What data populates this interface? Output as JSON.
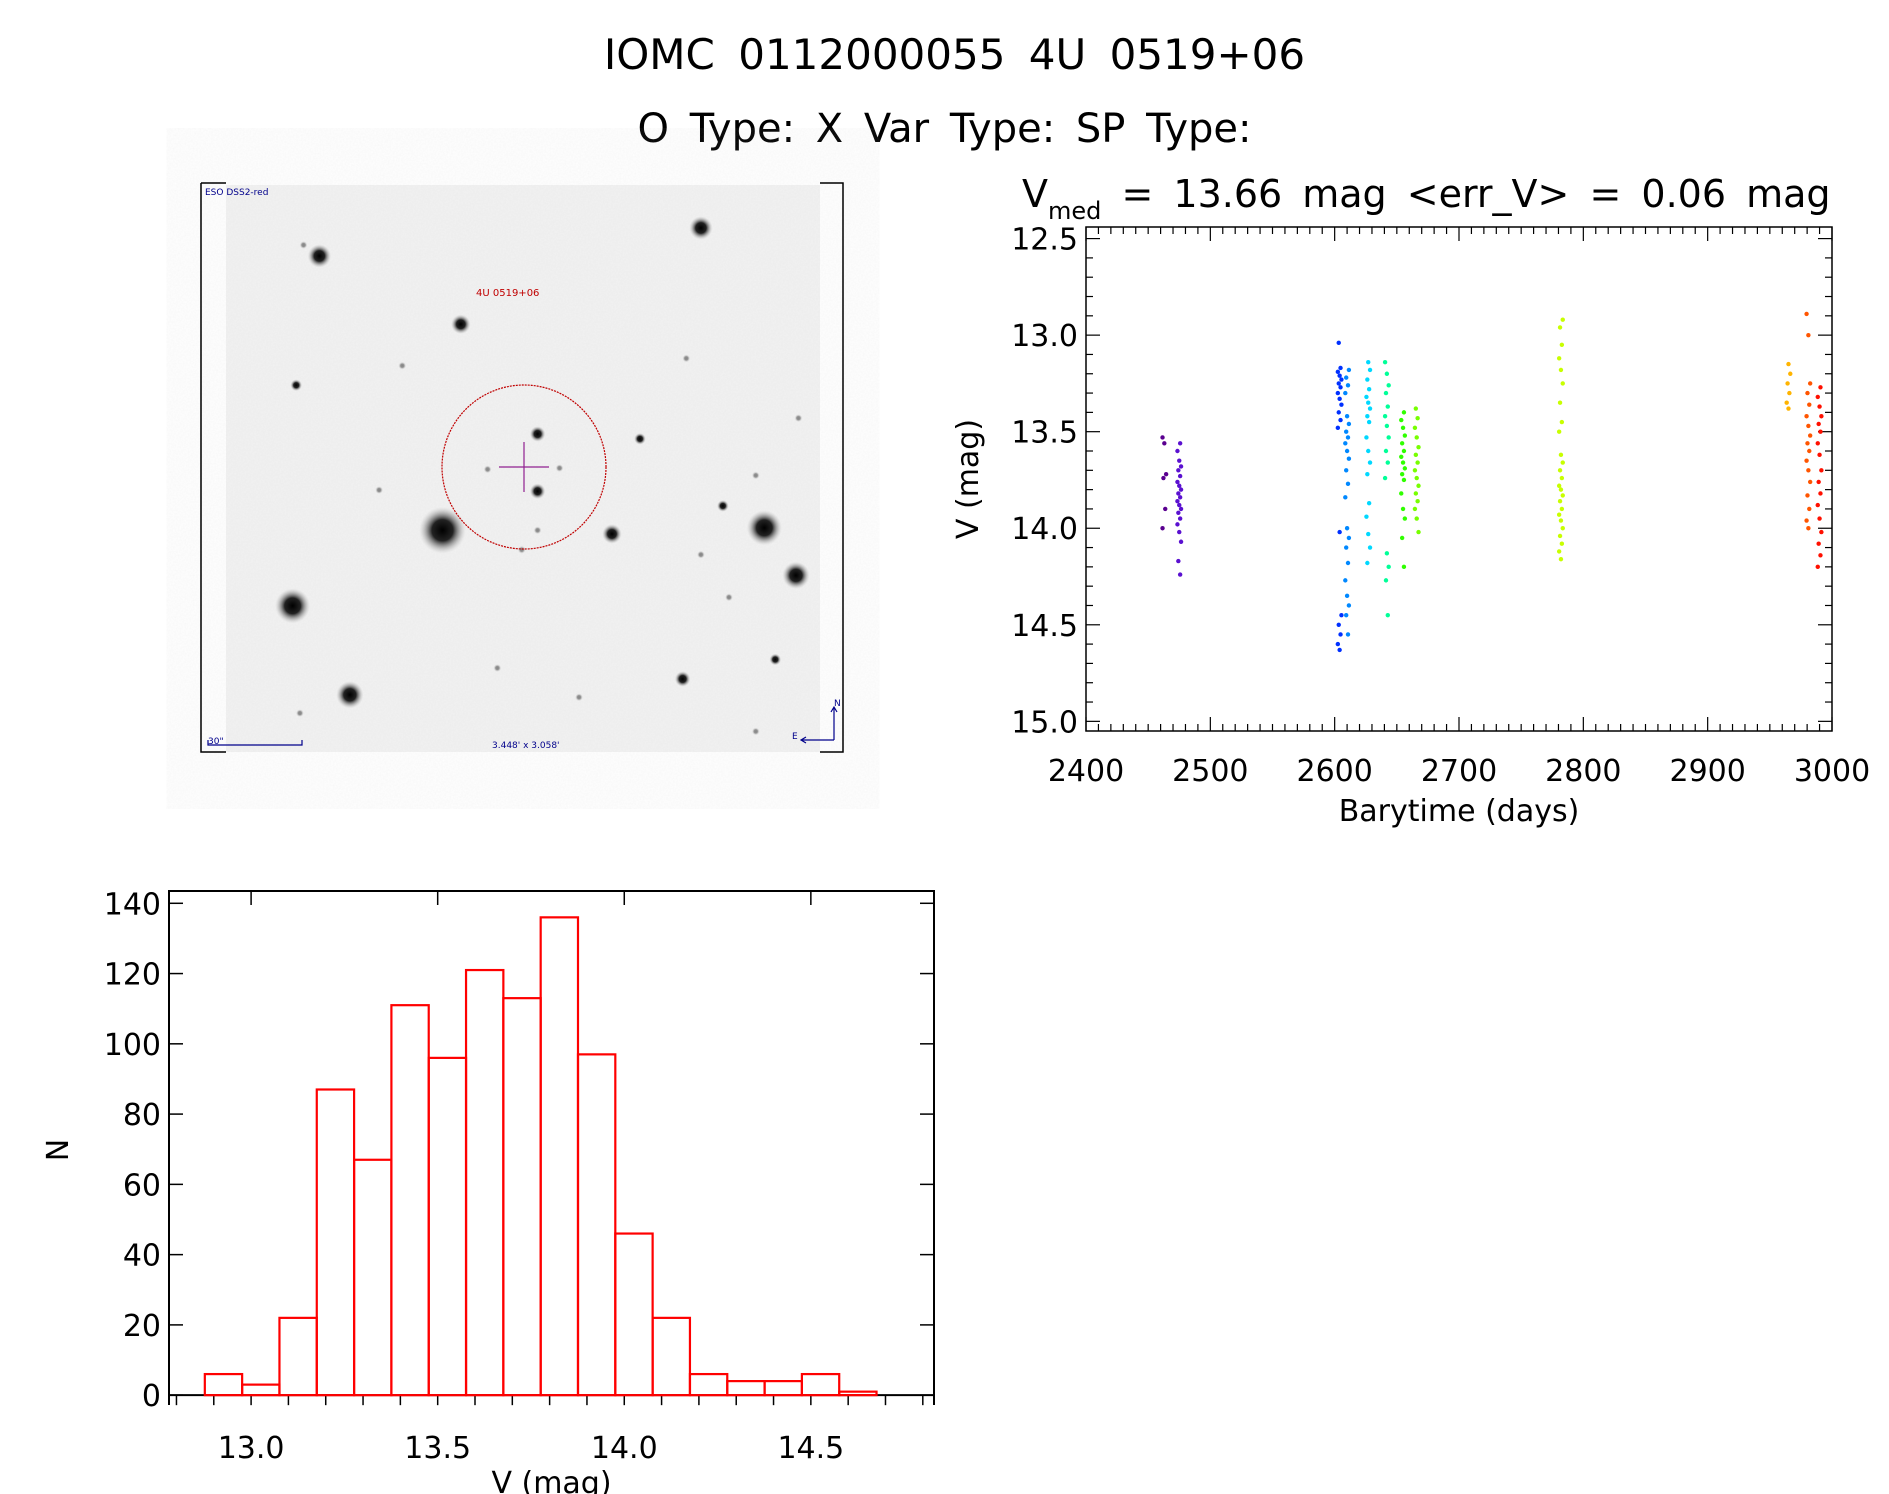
{
  "header": {
    "title": "IOMC 0112000055    4U 0519+06",
    "subtitle": "O Type: X   Var Type:    SP Type:"
  },
  "finder_image": {
    "survey_label": "ESO DSS2-red",
    "target_label": "4U 0519+06",
    "scale_label": "30\"",
    "field_size_label": "3.448' x 3.058'",
    "north_label": "N",
    "east_label": "E",
    "label_color": "#00008b",
    "target_color": "#c00000"
  },
  "chart_data": [
    {
      "type": "scatter",
      "title_main": "V",
      "title_sub": "med",
      "title_rest": " = 13.66 mag <err_V> = 0.06 mag",
      "xlabel": "Barytime (days)",
      "ylabel": "V (mag)",
      "xlim": [
        2400,
        3000
      ],
      "ylim": [
        15.05,
        12.44
      ],
      "y_reversed": true,
      "xticks": [
        "2400",
        "2500",
        "2600",
        "2700",
        "2800",
        "2900",
        "3000"
      ],
      "yticks": [
        "12.5",
        "13.0",
        "13.5",
        "14.0",
        "14.5",
        "15.0"
      ],
      "color_scale": "rainbow by time",
      "groups": [
        {
          "t": 2463,
          "color": "#5a0090",
          "v": [
            13.53,
            13.56,
            13.72,
            13.74,
            13.9,
            14.0
          ]
        },
        {
          "t": 2475,
          "color": "#5a10d0",
          "v": [
            13.56,
            13.6,
            13.65,
            13.68,
            13.7,
            13.73,
            13.76,
            13.78,
            13.8,
            13.82,
            13.84,
            13.86,
            13.88,
            13.9,
            13.92,
            13.95,
            13.98,
            14.02,
            14.07,
            14.17,
            14.24
          ]
        },
        {
          "t": 2604,
          "color": "#0030ff",
          "v": [
            13.04,
            13.17,
            13.19,
            13.21,
            13.23,
            13.25,
            13.27,
            13.3,
            13.33,
            13.36,
            13.4,
            13.44,
            13.48,
            14.02,
            14.45,
            14.5,
            14.55,
            14.6,
            14.63
          ]
        },
        {
          "t": 2610,
          "color": "#0088ff",
          "v": [
            13.18,
            13.22,
            13.26,
            13.3,
            13.42,
            13.46,
            13.5,
            13.53,
            13.56,
            13.6,
            13.64,
            13.7,
            13.77,
            13.84,
            14.0,
            14.05,
            14.1,
            14.18,
            14.27,
            14.35,
            14.4,
            14.45,
            14.55
          ]
        },
        {
          "t": 2627,
          "color": "#00d8ff",
          "v": [
            13.14,
            13.18,
            13.23,
            13.28,
            13.32,
            13.35,
            13.38,
            13.42,
            13.45,
            13.53,
            13.6,
            13.66,
            13.72,
            13.87,
            13.94,
            14.03,
            14.1,
            14.18
          ]
        },
        {
          "t": 2642,
          "color": "#00ff98",
          "v": [
            13.14,
            13.2,
            13.26,
            13.3,
            13.37,
            13.42,
            13.47,
            13.53,
            13.6,
            13.66,
            13.74,
            14.13,
            14.2,
            14.27,
            14.45
          ]
        },
        {
          "t": 2655,
          "color": "#30ff00",
          "v": [
            13.4,
            13.44,
            13.48,
            13.52,
            13.56,
            13.6,
            13.63,
            13.66,
            13.69,
            13.72,
            13.75,
            13.82,
            13.9,
            13.95,
            14.05,
            14.2
          ]
        },
        {
          "t": 2666,
          "color": "#78ff00",
          "v": [
            13.38,
            13.43,
            13.48,
            13.53,
            13.58,
            13.62,
            13.66,
            13.7,
            13.74,
            13.78,
            13.82,
            13.86,
            13.9,
            13.95,
            14.02
          ]
        },
        {
          "t": 2782,
          "color": "#c8ff00",
          "v": [
            12.92,
            12.96,
            13.05,
            13.12,
            13.18,
            13.25,
            13.35,
            13.45,
            13.5,
            13.62,
            13.66,
            13.7,
            13.74,
            13.78,
            13.8,
            13.83,
            13.86,
            13.9,
            13.93,
            13.96,
            14.0,
            14.04,
            14.08,
            14.12,
            14.16
          ]
        },
        {
          "t": 2965,
          "color": "#ffb400",
          "v": [
            13.15,
            13.2,
            13.25,
            13.3,
            13.35,
            13.38
          ]
        },
        {
          "t": 2981,
          "color": "#ff5500",
          "v": [
            12.89,
            13.0,
            13.25,
            13.3,
            13.36,
            13.42,
            13.47,
            13.52,
            13.56,
            13.6,
            13.65,
            13.7,
            13.76,
            13.83,
            13.9,
            13.96,
            14.0
          ]
        },
        {
          "t": 2990,
          "color": "#ff1000",
          "v": [
            13.27,
            13.32,
            13.37,
            13.42,
            13.46,
            13.5,
            13.56,
            13.62,
            13.7,
            13.76,
            13.82,
            13.88,
            13.95,
            14.02,
            14.08,
            14.14,
            14.2
          ]
        }
      ]
    },
    {
      "type": "bar",
      "subtype": "histogram",
      "xlabel": "V (mag)",
      "ylabel": "N",
      "xlim": [
        12.78,
        14.83
      ],
      "ylim": [
        -2.8,
        143.5
      ],
      "xticks": [
        "13.0",
        "13.5",
        "14.0",
        "14.5"
      ],
      "yticks": [
        "0",
        "20",
        "40",
        "60",
        "80",
        "100",
        "120",
        "140"
      ],
      "bin_start": 12.876,
      "bin_width": 0.1,
      "counts": [
        6,
        3,
        22,
        87,
        67,
        111,
        96,
        121,
        113,
        136,
        97,
        46,
        22,
        6,
        4,
        4,
        6,
        1
      ],
      "color": "#ff0000"
    }
  ]
}
